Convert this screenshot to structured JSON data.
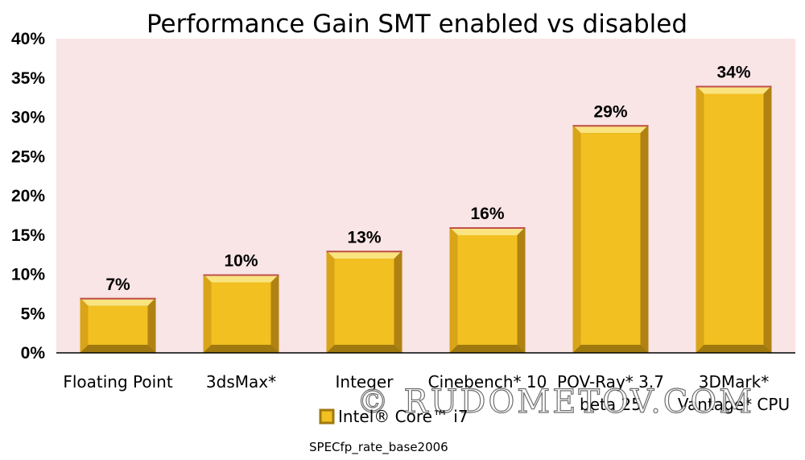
{
  "chart_data": {
    "type": "bar",
    "title": "Performance Gain SMT enabled vs disabled",
    "categories": [
      "Floating Point",
      "3dsMax*",
      "Integer",
      "Cinebench* 10",
      "POV-Ray* 3.7 beta 25",
      "3DMark* Vantage* CPU"
    ],
    "category_lines": [
      [
        "Floating Point"
      ],
      [
        "3dsMax*"
      ],
      [
        "Integer"
      ],
      [
        "Cinebench* 10"
      ],
      [
        "POV-Ray* 3.7",
        "beta 25"
      ],
      [
        "3DMark*",
        "Vantage* CPU"
      ]
    ],
    "series": [
      {
        "name": "Intel® Core™ i7",
        "values": [
          7,
          10,
          13,
          16,
          29,
          34
        ]
      }
    ],
    "data_labels": [
      "7%",
      "10%",
      "13%",
      "16%",
      "29%",
      "34%"
    ],
    "yticks": [
      "0%",
      "5%",
      "10%",
      "15%",
      "20%",
      "25%",
      "30%",
      "35%",
      "40%"
    ],
    "ylim": [
      0,
      40
    ],
    "legend_position": "bottom",
    "footnote": "SPECfp_rate_base2006",
    "colors": {
      "plot_bg": "#f9e4e6",
      "bar_fill": "#f2c020",
      "bar_edge": "#a07810",
      "bar_top": "#fae480"
    }
  },
  "watermark": "© RUDOMETOV.COM"
}
